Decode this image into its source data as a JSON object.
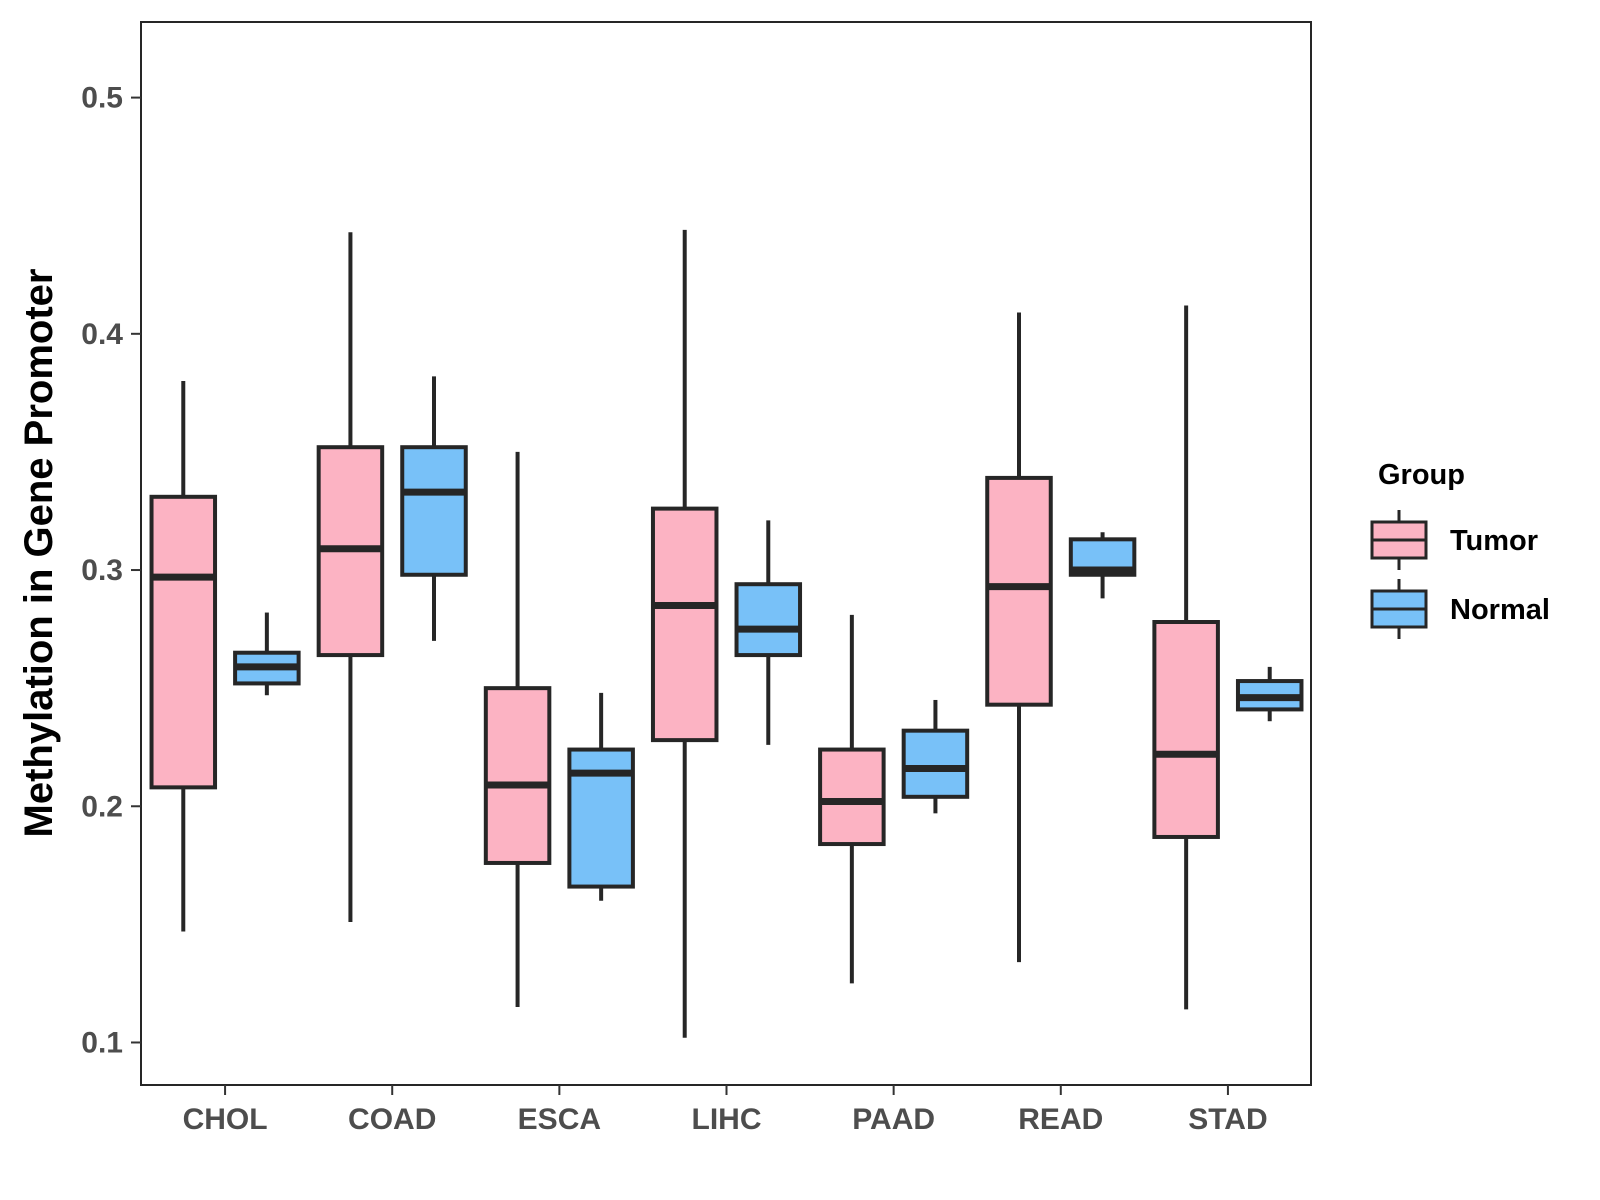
{
  "chart_data": {
    "type": "boxplot",
    "title": "",
    "xlabel": "",
    "ylabel": "Methylation in Gene Promoter",
    "ylim": [
      0.082,
      0.532
    ],
    "yticks": [
      0.1,
      0.2,
      0.3,
      0.4,
      0.5
    ],
    "ytick_labels": [
      "0.1",
      "0.2",
      "0.3",
      "0.4",
      "0.5"
    ],
    "categories": [
      "CHOL",
      "COAD",
      "ESCA",
      "LIHC",
      "PAAD",
      "READ",
      "STAD"
    ],
    "legend": {
      "title": "Group",
      "position": "right"
    },
    "series": [
      {
        "name": "Tumor",
        "color": "#fcb3c3",
        "boxes": [
          {
            "min": 0.147,
            "q1": 0.208,
            "median": 0.297,
            "q3": 0.331,
            "max": 0.38
          },
          {
            "min": 0.151,
            "q1": 0.264,
            "median": 0.309,
            "q3": 0.352,
            "max": 0.443
          },
          {
            "min": 0.115,
            "q1": 0.176,
            "median": 0.209,
            "q3": 0.25,
            "max": 0.35
          },
          {
            "min": 0.102,
            "q1": 0.228,
            "median": 0.285,
            "q3": 0.326,
            "max": 0.444
          },
          {
            "min": 0.125,
            "q1": 0.184,
            "median": 0.202,
            "q3": 0.224,
            "max": 0.281
          },
          {
            "min": 0.134,
            "q1": 0.243,
            "median": 0.293,
            "q3": 0.339,
            "max": 0.409
          },
          {
            "min": 0.114,
            "q1": 0.187,
            "median": 0.222,
            "q3": 0.278,
            "max": 0.412
          }
        ]
      },
      {
        "name": "Normal",
        "color": "#78c1f8",
        "boxes": [
          {
            "min": 0.247,
            "q1": 0.252,
            "median": 0.259,
            "q3": 0.265,
            "max": 0.282
          },
          {
            "min": 0.27,
            "q1": 0.298,
            "median": 0.333,
            "q3": 0.352,
            "max": 0.382
          },
          {
            "min": 0.16,
            "q1": 0.166,
            "median": 0.214,
            "q3": 0.224,
            "max": 0.248
          },
          {
            "min": 0.226,
            "q1": 0.264,
            "median": 0.275,
            "q3": 0.294,
            "max": 0.321
          },
          {
            "min": 0.197,
            "q1": 0.204,
            "median": 0.216,
            "q3": 0.232,
            "max": 0.245
          },
          {
            "min": 0.288,
            "q1": 0.298,
            "median": 0.3,
            "q3": 0.313,
            "max": 0.316
          },
          {
            "min": 0.236,
            "q1": 0.241,
            "median": 0.246,
            "q3": 0.253,
            "max": 0.259
          }
        ]
      }
    ]
  }
}
